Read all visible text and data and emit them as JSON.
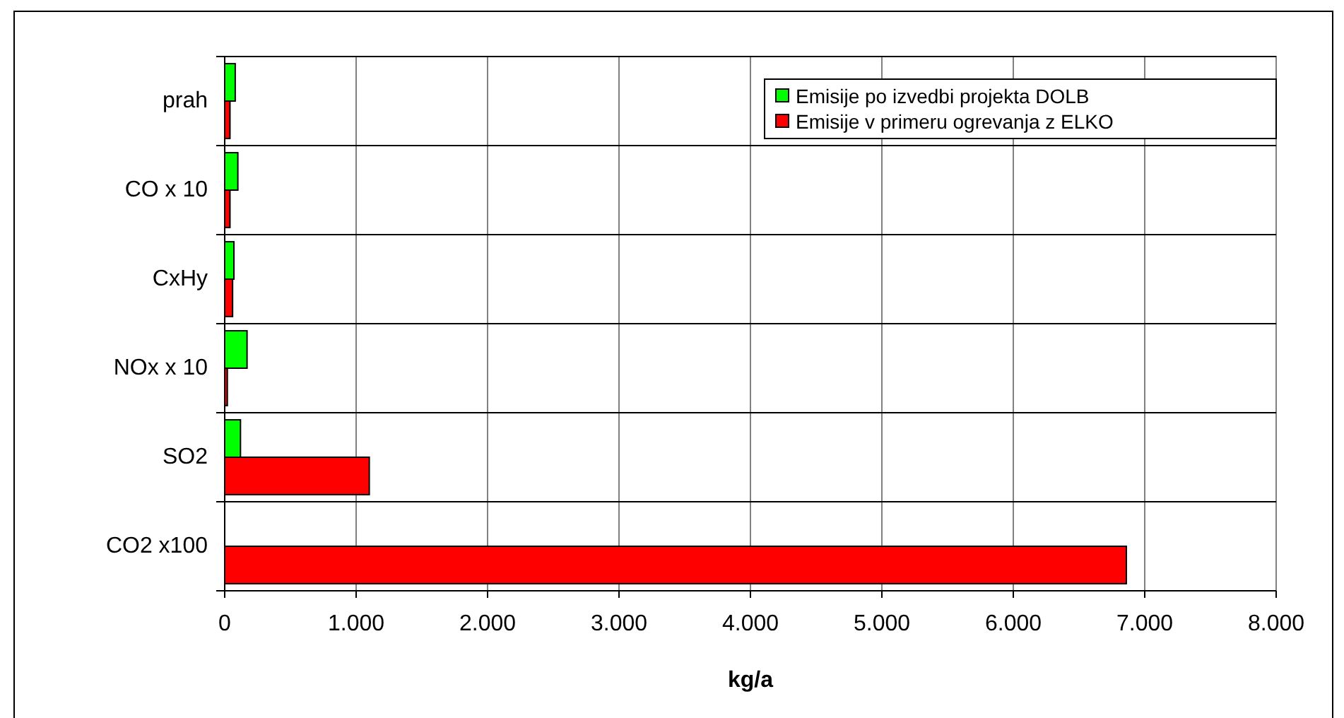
{
  "chart_data": {
    "type": "bar",
    "orientation": "horizontal",
    "xlabel": "kg/a",
    "categories": [
      "prah",
      "CO x 10",
      "CxHy",
      "NOx x 10",
      "SO2",
      "CO2 x100"
    ],
    "series": [
      {
        "name": "Emisije po izvedbi projekta DOLB",
        "color": "#00ff00",
        "values": [
          80,
          100,
          70,
          170,
          120,
          null
        ]
      },
      {
        "name": "Emisije v primeru ogrevanja z ELKO",
        "color": "#ff0000",
        "values": [
          40,
          40,
          60,
          20,
          1100,
          6860
        ]
      }
    ],
    "xlim": [
      0,
      8000
    ],
    "xticks": [
      0,
      {
        "value": 1000,
        "label": "1.000"
      },
      {
        "value": 2000,
        "label": "2.000"
      },
      {
        "value": 3000,
        "label": "3.000"
      },
      {
        "value": 4000,
        "label": "4.000"
      },
      {
        "value": 5000,
        "label": "5.000"
      },
      {
        "value": 6000,
        "label": "6.000"
      },
      {
        "value": 7000,
        "label": "7.000"
      },
      {
        "value": 8000,
        "label": "8.000"
      }
    ],
    "grid": true,
    "legend": "top right"
  }
}
